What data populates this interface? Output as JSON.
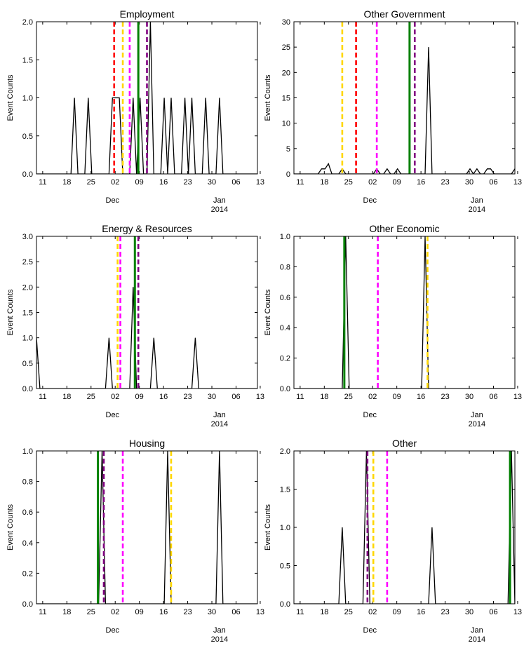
{
  "x_axis": {
    "tick_labels": [
      "11",
      "18",
      "25",
      "02",
      "09",
      "16",
      "23",
      "30",
      "06",
      "13"
    ],
    "month_labels": [
      "Dec",
      "Jan"
    ],
    "year_label": "2014"
  },
  "colors": {
    "counts_line": "#000000",
    "red": "#ff0000",
    "gold": "#ffd700",
    "magenta": "#ff00ff",
    "purple": "#800080",
    "green": "#008000"
  },
  "chart_data": [
    {
      "type": "line",
      "title": "Employment",
      "ylabel": "Event Counts",
      "ylim": [
        0,
        2.0
      ],
      "yticks": [
        "0.0",
        "0.5",
        "1.0",
        "1.5",
        "2.0"
      ],
      "x_days": [
        0,
        1,
        2,
        3,
        4,
        5,
        6,
        7,
        8,
        9,
        10,
        11,
        12,
        13,
        14,
        15,
        16,
        17,
        18,
        19,
        20,
        21,
        22,
        23,
        24,
        25,
        26,
        27,
        28,
        29,
        30,
        31,
        32,
        33,
        34,
        35,
        36,
        37,
        38,
        39,
        40,
        41,
        42,
        43,
        44,
        45,
        46,
        47,
        48,
        49,
        50,
        51,
        52,
        53,
        54,
        55,
        56,
        57,
        58,
        59,
        60,
        61,
        62,
        63,
        64
      ],
      "values": [
        0,
        0,
        0,
        0,
        0,
        0,
        0,
        0,
        0,
        0,
        0,
        1,
        0,
        0,
        0,
        1,
        0,
        0,
        0,
        0,
        0,
        0,
        1,
        1,
        1,
        0,
        0,
        0,
        1,
        0,
        1,
        0,
        0,
        2,
        0,
        0,
        0,
        1,
        0,
        1,
        0,
        0,
        0,
        1,
        0,
        1,
        0,
        0,
        0,
        1,
        0,
        0,
        0,
        1,
        0,
        0,
        0,
        0,
        0,
        0,
        0,
        0,
        0,
        0,
        0
      ],
      "vlines": [
        {
          "day": 22.5,
          "color": "#ff0000",
          "style": "dashed"
        },
        {
          "day": 25,
          "color": "#ffd700",
          "style": "dashed"
        },
        {
          "day": 27,
          "color": "#ff00ff",
          "style": "dashed"
        },
        {
          "day": 29.5,
          "color": "#008000",
          "style": "solid"
        },
        {
          "day": 32,
          "color": "#800080",
          "style": "dashed"
        }
      ]
    },
    {
      "type": "line",
      "title": "Other Government",
      "ylabel": "Event Counts",
      "ylim": [
        0,
        30
      ],
      "yticks": [
        "0",
        "5",
        "10",
        "15",
        "20",
        "25",
        "30"
      ],
      "x_days": [
        0,
        1,
        2,
        3,
        4,
        5,
        6,
        7,
        8,
        9,
        10,
        11,
        12,
        13,
        14,
        15,
        16,
        17,
        18,
        19,
        20,
        21,
        22,
        23,
        24,
        25,
        26,
        27,
        28,
        29,
        30,
        31,
        32,
        33,
        34,
        35,
        36,
        37,
        38,
        39,
        40,
        41,
        42,
        43,
        44,
        45,
        46,
        47,
        48,
        49,
        50,
        51,
        52,
        53,
        54,
        55,
        56,
        57,
        58,
        59,
        60,
        61,
        62,
        63,
        64
      ],
      "values": [
        0,
        0,
        0,
        0,
        0,
        0,
        0,
        0,
        1,
        1,
        2,
        0,
        0,
        0,
        1,
        0,
        0,
        0,
        0,
        0,
        0,
        0,
        0,
        0,
        1,
        0,
        0,
        1,
        0,
        0,
        1,
        0,
        0,
        0,
        0,
        0,
        0,
        0,
        0,
        25,
        0,
        0,
        0,
        0,
        0,
        0,
        0,
        0,
        0,
        0,
        0,
        1,
        0,
        1,
        0,
        0,
        1,
        1,
        0,
        0,
        0,
        0,
        0,
        0,
        1
      ],
      "vlines": [
        {
          "day": 14,
          "color": "#ffd700",
          "style": "dashed"
        },
        {
          "day": 18,
          "color": "#ff0000",
          "style": "dashed"
        },
        {
          "day": 24,
          "color": "#ff00ff",
          "style": "dashed"
        },
        {
          "day": 33.5,
          "color": "#008000",
          "style": "solid"
        },
        {
          "day": 35,
          "color": "#800080",
          "style": "dashed"
        }
      ]
    },
    {
      "type": "line",
      "title": "Energy & Resources",
      "ylabel": "Event Counts",
      "ylim": [
        0,
        3.0
      ],
      "yticks": [
        "0.0",
        "0.5",
        "1.0",
        "1.5",
        "2.0",
        "2.5",
        "3.0"
      ],
      "x_days": [
        0,
        1,
        2,
        3,
        4,
        5,
        6,
        7,
        8,
        9,
        10,
        11,
        12,
        13,
        14,
        15,
        16,
        17,
        18,
        19,
        20,
        21,
        22,
        23,
        24,
        25,
        26,
        27,
        28,
        29,
        30,
        31,
        32,
        33,
        34,
        35,
        36,
        37,
        38,
        39,
        40,
        41,
        42,
        43,
        44,
        45,
        46,
        47,
        48,
        49,
        50,
        51,
        52,
        53,
        54,
        55,
        56,
        57,
        58,
        59,
        60,
        61,
        62,
        63,
        64
      ],
      "values": [
        1,
        0,
        0,
        0,
        0,
        0,
        0,
        0,
        0,
        0,
        0,
        0,
        0,
        0,
        0,
        0,
        0,
        0,
        0,
        0,
        0,
        1,
        0,
        0,
        0,
        0,
        0,
        0,
        2,
        0,
        0,
        0,
        0,
        0,
        1,
        0,
        0,
        0,
        0,
        0,
        0,
        0,
        0,
        0,
        0,
        0,
        1,
        0,
        0,
        0,
        0,
        0,
        0,
        0,
        0,
        0,
        0,
        0,
        0,
        0,
        0,
        0,
        0,
        0,
        0
      ],
      "vlines": [
        {
          "day": 23.5,
          "color": "#ffd700",
          "style": "dashed"
        },
        {
          "day": 24.3,
          "color": "#ff00ff",
          "style": "dashed"
        },
        {
          "day": 28.5,
          "color": "#008000",
          "style": "solid"
        },
        {
          "day": 29.5,
          "color": "#800080",
          "style": "dashed"
        }
      ]
    },
    {
      "type": "line",
      "title": "Other Economic",
      "ylabel": "Event Counts",
      "ylim": [
        0,
        1.0
      ],
      "yticks": [
        "0.0",
        "0.2",
        "0.4",
        "0.6",
        "0.8",
        "1.0"
      ],
      "x_days": [
        0,
        1,
        2,
        3,
        4,
        5,
        6,
        7,
        8,
        9,
        10,
        11,
        12,
        13,
        14,
        15,
        16,
        17,
        18,
        19,
        20,
        21,
        22,
        23,
        24,
        25,
        26,
        27,
        28,
        29,
        30,
        31,
        32,
        33,
        34,
        35,
        36,
        37,
        38,
        39,
        40,
        41,
        42,
        43,
        44,
        45,
        46,
        47,
        48,
        49,
        50,
        51,
        52,
        53,
        54,
        55,
        56,
        57,
        58,
        59,
        60,
        61,
        62,
        63,
        64
      ],
      "values": [
        0,
        0,
        0,
        0,
        0,
        0,
        0,
        0,
        0,
        0,
        0,
        0,
        0,
        0,
        0,
        1,
        0,
        0,
        0,
        0,
        0,
        0,
        0,
        0,
        0,
        0,
        0,
        0,
        0,
        0,
        0,
        0,
        0,
        0,
        0,
        0,
        0,
        0,
        1,
        0,
        0,
        0,
        0,
        0,
        0,
        0,
        0,
        0,
        0,
        0,
        0,
        0,
        0,
        0,
        0,
        0,
        0,
        0,
        0,
        0,
        0,
        0,
        0,
        0,
        0
      ],
      "vlines": [
        {
          "day": 14.6,
          "color": "#008000",
          "style": "solid"
        },
        {
          "day": 24.3,
          "color": "#ff00ff",
          "style": "dashed"
        },
        {
          "day": 38.7,
          "color": "#ffd700",
          "style": "dashed"
        }
      ]
    },
    {
      "type": "line",
      "title": "Housing",
      "ylabel": "Event Counts",
      "ylim": [
        0,
        1.0
      ],
      "yticks": [
        "0.0",
        "0.2",
        "0.4",
        "0.6",
        "0.8",
        "1.0"
      ],
      "x_days": [
        0,
        1,
        2,
        3,
        4,
        5,
        6,
        7,
        8,
        9,
        10,
        11,
        12,
        13,
        14,
        15,
        16,
        17,
        18,
        19,
        20,
        21,
        22,
        23,
        24,
        25,
        26,
        27,
        28,
        29,
        30,
        31,
        32,
        33,
        34,
        35,
        36,
        37,
        38,
        39,
        40,
        41,
        42,
        43,
        44,
        45,
        46,
        47,
        48,
        49,
        50,
        51,
        52,
        53,
        54,
        55,
        56,
        57,
        58,
        59,
        60,
        61,
        62,
        63,
        64
      ],
      "values": [
        0,
        0,
        0,
        0,
        0,
        0,
        0,
        0,
        0,
        0,
        0,
        0,
        0,
        0,
        0,
        0,
        0,
        0,
        0,
        1,
        0,
        0,
        0,
        0,
        0,
        0,
        0,
        0,
        0,
        0,
        0,
        0,
        0,
        0,
        0,
        0,
        0,
        0,
        1,
        0,
        0,
        0,
        0,
        0,
        0,
        0,
        0,
        0,
        0,
        0,
        0,
        0,
        0,
        1,
        0,
        0,
        0,
        0,
        0,
        0,
        0,
        0,
        0,
        0,
        0
      ],
      "vlines": [
        {
          "day": 17.8,
          "color": "#008000",
          "style": "solid"
        },
        {
          "day": 19.5,
          "color": "#800080",
          "style": "dashed"
        },
        {
          "day": 25,
          "color": "#ff00ff",
          "style": "dashed"
        },
        {
          "day": 39,
          "color": "#ffd700",
          "style": "dashed"
        }
      ]
    },
    {
      "type": "line",
      "title": "Other",
      "ylabel": "Event Counts",
      "ylim": [
        0,
        2.0
      ],
      "yticks": [
        "0.0",
        "0.5",
        "1.0",
        "1.5",
        "2.0"
      ],
      "x_days": [
        0,
        1,
        2,
        3,
        4,
        5,
        6,
        7,
        8,
        9,
        10,
        11,
        12,
        13,
        14,
        15,
        16,
        17,
        18,
        19,
        20,
        21,
        22,
        23,
        24,
        25,
        26,
        27,
        28,
        29,
        30,
        31,
        32,
        33,
        34,
        35,
        36,
        37,
        38,
        39,
        40,
        41,
        42,
        43,
        44,
        45,
        46,
        47,
        48,
        49,
        50,
        51,
        52,
        53,
        54,
        55,
        56,
        57,
        58,
        59,
        60,
        61,
        62,
        63,
        64
      ],
      "values": [
        0,
        0,
        0,
        0,
        0,
        0,
        0,
        0,
        0,
        0,
        0,
        0,
        0,
        0,
        1,
        0,
        0,
        0,
        0,
        0,
        0,
        2,
        0,
        0,
        0,
        0,
        0,
        0,
        0,
        0,
        0,
        0,
        0,
        0,
        0,
        0,
        0,
        0,
        0,
        0,
        1,
        0,
        0,
        0,
        0,
        0,
        0,
        0,
        0,
        0,
        0,
        0,
        0,
        0,
        0,
        0,
        0,
        0,
        0,
        0,
        0,
        0,
        0,
        2,
        0
      ],
      "vlines": [
        {
          "day": 21.3,
          "color": "#800080",
          "style": "dashed"
        },
        {
          "day": 23,
          "color": "#ffd700",
          "style": "dashed"
        },
        {
          "day": 27,
          "color": "#ff00ff",
          "style": "dashed"
        },
        {
          "day": 62.6,
          "color": "#008000",
          "style": "solid"
        }
      ]
    }
  ]
}
